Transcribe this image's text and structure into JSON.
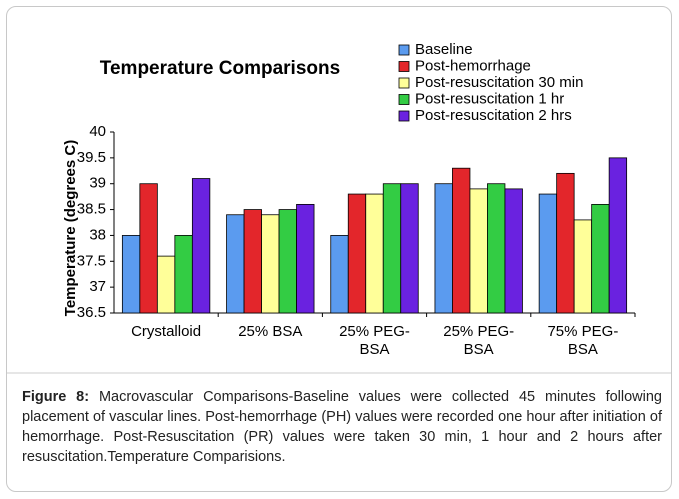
{
  "chart_data": {
    "type": "bar",
    "title": "Temperature Comparisons",
    "y_label": "Temperature (degrees C)",
    "categories": [
      "Crystalloid",
      "25% BSA",
      "25% PEG-BSA",
      "25% PEG-BSA",
      "75% PEG-BSA"
    ],
    "series": [
      {
        "name": "Baseline",
        "color": "#5b9bef",
        "values": [
          38.0,
          38.4,
          38.0,
          39.0,
          38.8
        ]
      },
      {
        "name": "Post-hemorrhage",
        "color": "#e3262b",
        "values": [
          39.0,
          38.5,
          38.8,
          39.3,
          39.2
        ]
      },
      {
        "name": "Post-resuscitation 30 min",
        "color": "#ffff99",
        "values": [
          37.6,
          38.4,
          38.8,
          38.9,
          38.3
        ]
      },
      {
        "name": "Post-resuscitation 1 hr",
        "color": "#33cc44",
        "values": [
          38.0,
          38.5,
          39.0,
          39.0,
          38.6
        ]
      },
      {
        "name": "Post-resuscitation 2 hrs",
        "color": "#6a22e0",
        "values": [
          39.1,
          38.6,
          39.0,
          38.9,
          39.5
        ]
      }
    ],
    "ylim": [
      36.5,
      40
    ],
    "yticks": [
      36.5,
      37,
      37.5,
      38,
      38.5,
      39,
      39.5,
      40
    ],
    "grid": false,
    "legend": "top-right"
  },
  "caption": {
    "label": "Figure 8:",
    "text": "Macrovascular Comparisons-Baseline values were collected 45 minutes following placement of vascular lines. Post-hemorrhage (PH) values were recorded one hour after initiation of hemorrhage. Post-Resuscitation (PR) values were taken 30 min, 1 hour and 2 hours after resuscitation.Temperature Comparisions."
  }
}
